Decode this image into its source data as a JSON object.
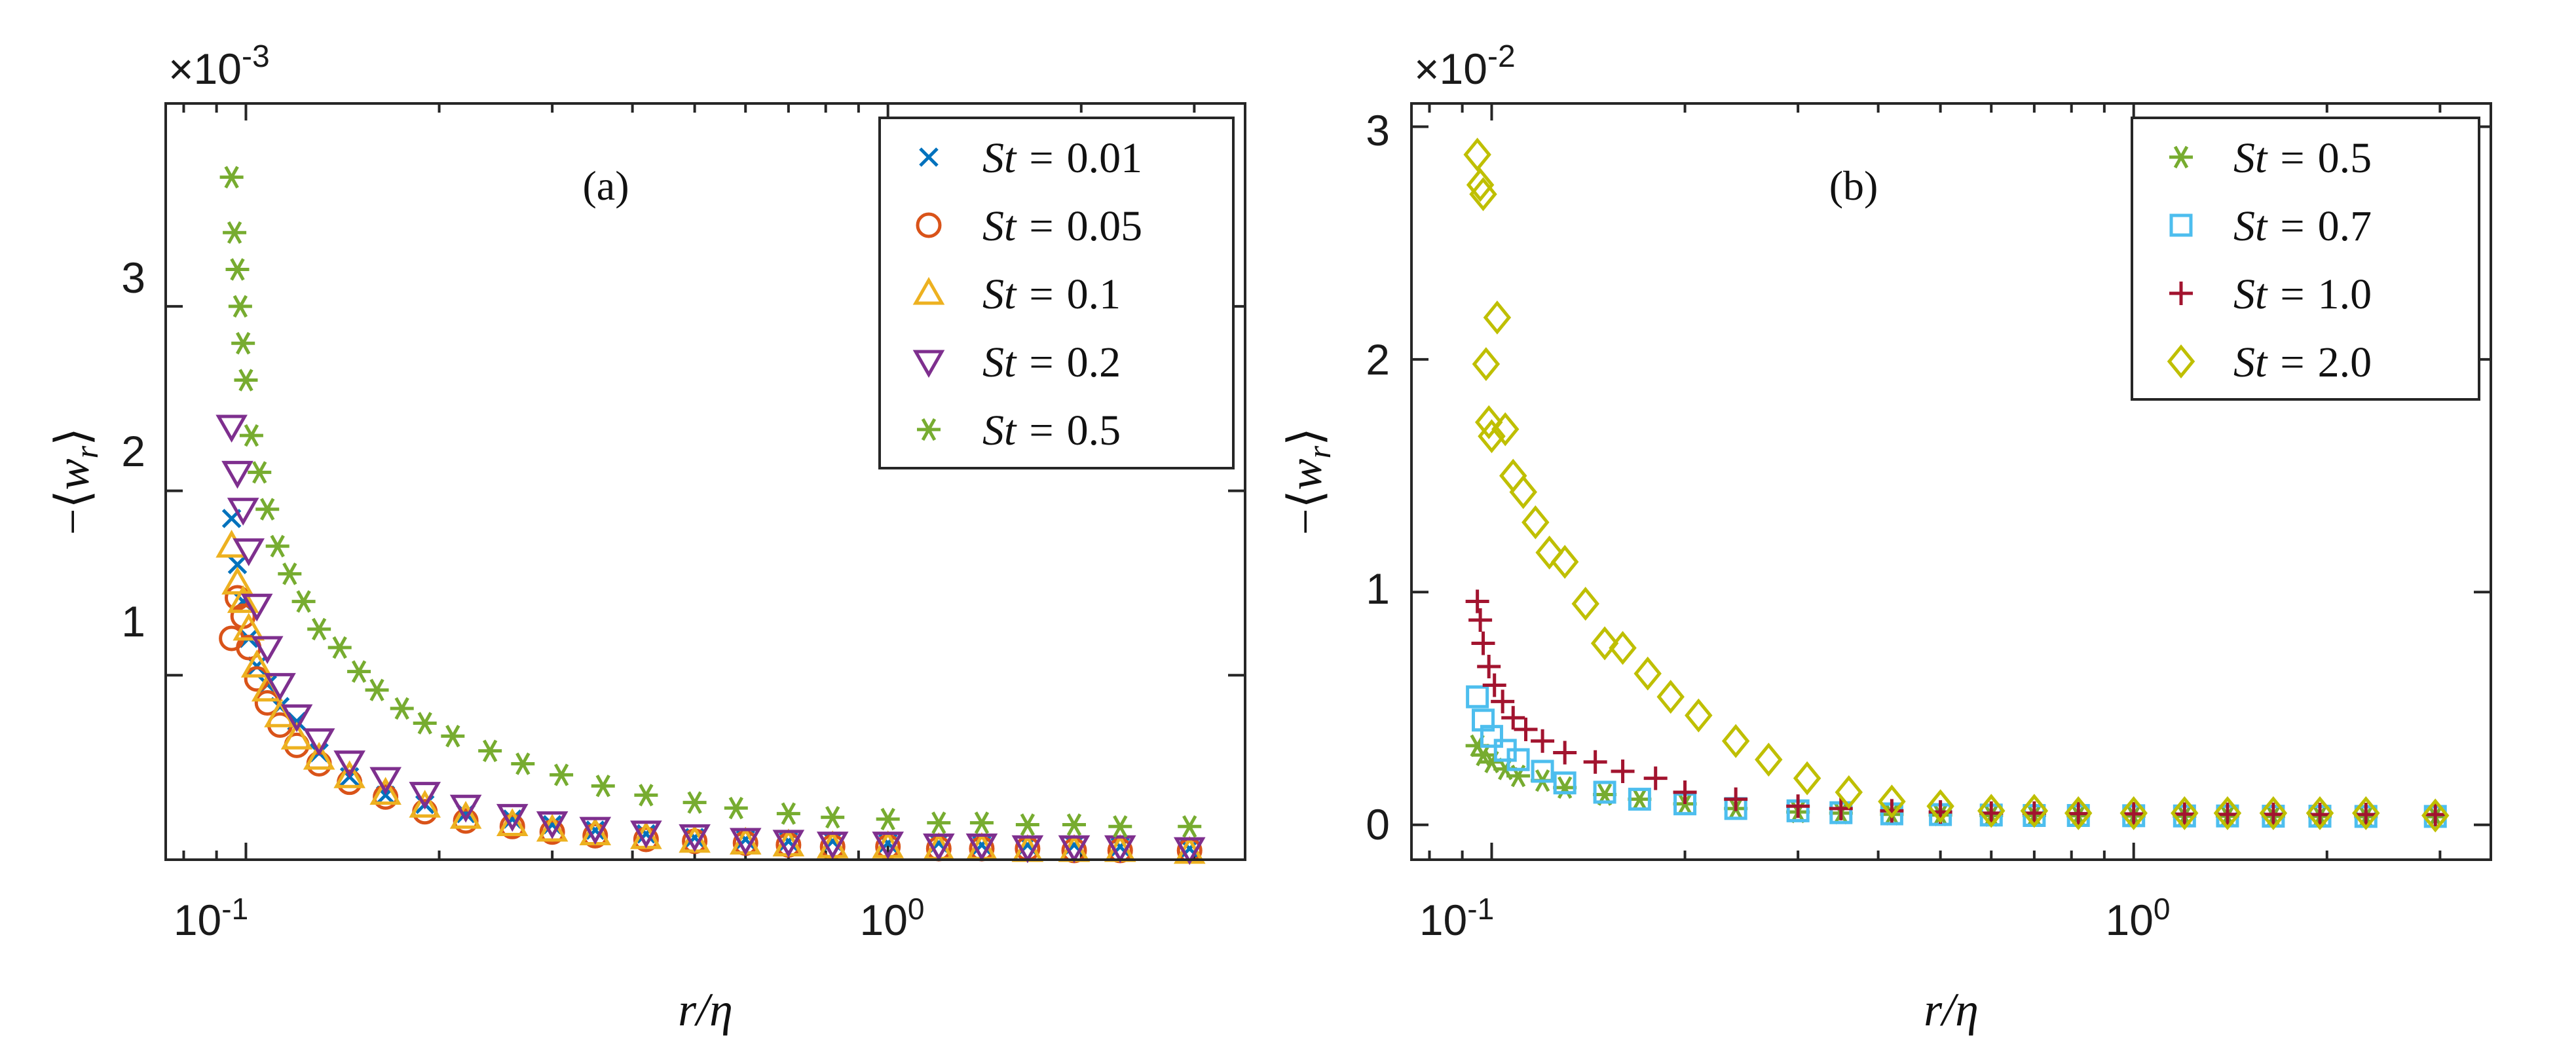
{
  "chart_data": [
    {
      "panel": "(a)",
      "type": "scatter",
      "xscale": "log",
      "xlim": [
        0.075,
        3.6
      ],
      "ylim": [
        0,
        0.0041
      ],
      "x_ticks": [
        {
          "value": 0.1,
          "base": "10",
          "exp": "-1"
        },
        {
          "value": 1,
          "base": "10",
          "exp": "0"
        }
      ],
      "y_ticks": [
        {
          "value": 0.001,
          "label": "1"
        },
        {
          "value": 0.002,
          "label": "2"
        },
        {
          "value": 0.003,
          "label": "3"
        }
      ],
      "exponent": {
        "prefix": "×10",
        "power": "-3"
      },
      "xlabel": "r/η",
      "ylabel": "−⟨w_r⟩",
      "ylabel_parts": {
        "minus": "−",
        "open": "⟨",
        "w": "w",
        "sub": "r",
        "close": "⟩"
      },
      "legend_position": "top-right",
      "series": [
        {
          "name": "St = 0.01",
          "name_parts": {
            "St": "St",
            "eq": "=",
            "value": "0.01"
          },
          "marker": "x",
          "color": "#0072BD",
          "x": [
            0.095,
            0.097,
            0.099,
            0.101,
            0.104,
            0.108,
            0.113,
            0.12,
            0.13,
            0.145,
            0.165,
            0.19,
            0.22,
            0.26,
            0.3,
            0.35,
            0.42,
            0.5,
            0.6,
            0.7,
            0.82,
            1.0,
            1.2,
            1.4,
            1.65,
            1.95,
            2.3,
            2.95
          ],
          "y": [
            0.00185,
            0.0016,
            0.0014,
            0.0012,
            0.00105,
            0.00095,
            0.00083,
            0.00075,
            0.00058,
            0.00045,
            0.00035,
            0.0003,
            0.00025,
            0.00022,
            0.00019,
            0.00016,
            0.00014,
            0.00012,
            0.00011,
            0.0001,
            0.0001,
            9e-05,
            9e-05,
            8e-05,
            8e-05,
            8e-05,
            7e-05,
            6e-05
          ]
        },
        {
          "name": "St = 0.05",
          "name_parts": {
            "St": "St",
            "eq": "=",
            "value": "0.05"
          },
          "marker": "circle",
          "color": "#D95319",
          "x": [
            0.095,
            0.097,
            0.099,
            0.101,
            0.104,
            0.108,
            0.113,
            0.12,
            0.13,
            0.145,
            0.165,
            0.19,
            0.22,
            0.26,
            0.3,
            0.35,
            0.42,
            0.5,
            0.6,
            0.7,
            0.82,
            1.0,
            1.2,
            1.4,
            1.65,
            1.95,
            2.3,
            2.95
          ],
          "y": [
            0.0012,
            0.00142,
            0.00132,
            0.00115,
            0.00098,
            0.00085,
            0.00073,
            0.00062,
            0.00052,
            0.00042,
            0.00034,
            0.00026,
            0.00021,
            0.00018,
            0.00015,
            0.00013,
            0.00011,
            0.0001,
            9e-05,
            8e-05,
            7e-05,
            7e-05,
            6e-05,
            6e-05,
            6e-05,
            5e-05,
            5e-05,
            5e-05
          ]
        },
        {
          "name": "St = 0.1",
          "name_parts": {
            "St": "St",
            "eq": "=",
            "value": "0.1"
          },
          "marker": "triangle-up",
          "color": "#EDB120",
          "x": [
            0.095,
            0.097,
            0.099,
            0.101,
            0.104,
            0.108,
            0.113,
            0.12,
            0.13,
            0.145,
            0.165,
            0.19,
            0.22,
            0.26,
            0.3,
            0.35,
            0.42,
            0.5,
            0.6,
            0.7,
            0.82,
            1.0,
            1.2,
            1.4,
            1.65,
            1.95,
            2.3,
            2.95
          ],
          "y": [
            0.0017,
            0.0015,
            0.0014,
            0.00125,
            0.00105,
            0.00092,
            0.00078,
            0.00066,
            0.00055,
            0.00045,
            0.00036,
            0.00029,
            0.00023,
            0.00019,
            0.00016,
            0.00014,
            0.00012,
            0.0001,
            9e-05,
            8e-05,
            7e-05,
            7e-05,
            6e-05,
            6e-05,
            5e-05,
            5e-05,
            5e-05,
            4e-05
          ]
        },
        {
          "name": "St = 0.2",
          "name_parts": {
            "St": "St",
            "eq": "=",
            "value": "0.2"
          },
          "marker": "triangle-down",
          "color": "#7E2F8E",
          "x": [
            0.095,
            0.097,
            0.099,
            0.101,
            0.104,
            0.108,
            0.113,
            0.12,
            0.13,
            0.145,
            0.165,
            0.19,
            0.22,
            0.26,
            0.3,
            0.35,
            0.42,
            0.5,
            0.6,
            0.7,
            0.82,
            1.0,
            1.2,
            1.4,
            1.65,
            1.95,
            2.3,
            2.95
          ],
          "y": [
            0.00235,
            0.0021,
            0.0019,
            0.00168,
            0.00138,
            0.00115,
            0.00095,
            0.00078,
            0.00065,
            0.00053,
            0.00044,
            0.00036,
            0.00029,
            0.00024,
            0.0002,
            0.00017,
            0.00015,
            0.00013,
            0.00011,
            0.0001,
            9e-05,
            9e-05,
            8e-05,
            8e-05,
            7e-05,
            7e-05,
            7e-05,
            6e-05
          ]
        },
        {
          "name": "St = 0.5",
          "name_parts": {
            "St": "St",
            "eq": "=",
            "value": "0.5"
          },
          "marker": "asterisk",
          "color": "#77AC30",
          "x": [
            0.095,
            0.096,
            0.097,
            0.098,
            0.099,
            0.1,
            0.102,
            0.105,
            0.108,
            0.112,
            0.117,
            0.123,
            0.13,
            0.14,
            0.15,
            0.16,
            0.175,
            0.19,
            0.21,
            0.24,
            0.27,
            0.31,
            0.36,
            0.42,
            0.5,
            0.58,
            0.7,
            0.82,
            1.0,
            1.2,
            1.4,
            1.65,
            1.95,
            2.3,
            2.95
          ],
          "y": [
            0.0037,
            0.0034,
            0.0032,
            0.003,
            0.0028,
            0.0026,
            0.0023,
            0.0021,
            0.0019,
            0.0017,
            0.00155,
            0.0014,
            0.00125,
            0.00115,
            0.00102,
            0.00092,
            0.00082,
            0.00074,
            0.00067,
            0.00059,
            0.00052,
            0.00046,
            0.0004,
            0.00035,
            0.00031,
            0.00028,
            0.00025,
            0.00023,
            0.00022,
            0.0002,
            0.0002,
            0.00019,
            0.00019,
            0.00018,
            0.00018
          ]
        }
      ]
    },
    {
      "panel": "(b)",
      "type": "scatter",
      "xscale": "log",
      "xlim": [
        0.075,
        3.6
      ],
      "ylim": [
        -0.0015,
        0.031
      ],
      "x_ticks": [
        {
          "value": 0.1,
          "base": "10",
          "exp": "-1"
        },
        {
          "value": 1,
          "base": "10",
          "exp": "0"
        }
      ],
      "y_ticks": [
        {
          "value": 0,
          "label": "0"
        },
        {
          "value": 0.01,
          "label": "1"
        },
        {
          "value": 0.02,
          "label": "2"
        },
        {
          "value": 0.03,
          "label": "3"
        }
      ],
      "exponent": {
        "prefix": "×10",
        "power": "-2"
      },
      "xlabel": "r/η",
      "ylabel": "−⟨w_r⟩",
      "ylabel_parts": {
        "minus": "−",
        "open": "⟨",
        "w": "w",
        "sub": "r",
        "close": "⟩"
      },
      "legend_position": "top-right",
      "series": [
        {
          "name": "St = 0.5",
          "name_parts": {
            "St": "St",
            "eq": "=",
            "value": "0.5"
          },
          "marker": "asterisk",
          "color": "#77AC30",
          "x": [
            0.095,
            0.097,
            0.1,
            0.105,
            0.11,
            0.12,
            0.13,
            0.15,
            0.17,
            0.2,
            0.24,
            0.3,
            0.35,
            0.42,
            0.5,
            0.6,
            0.7,
            0.82,
            1.0,
            1.2,
            1.4,
            1.65,
            1.95,
            2.3,
            2.95
          ],
          "y": [
            0.0034,
            0.003,
            0.0027,
            0.0024,
            0.0021,
            0.0019,
            0.0016,
            0.0013,
            0.0011,
            0.0009,
            0.0007,
            0.00055,
            0.0005,
            0.00045,
            0.00042,
            0.0004,
            0.0004,
            0.00039,
            0.00038,
            0.00037,
            0.00037,
            0.00036,
            0.00036,
            0.00035,
            0.00035
          ]
        },
        {
          "name": "St = 0.7",
          "name_parts": {
            "St": "St",
            "eq": "=",
            "value": "0.7"
          },
          "marker": "square",
          "color": "#4DBEEE",
          "x": [
            0.095,
            0.097,
            0.1,
            0.105,
            0.11,
            0.12,
            0.13,
            0.15,
            0.17,
            0.2,
            0.24,
            0.3,
            0.35,
            0.42,
            0.5,
            0.6,
            0.7,
            0.82,
            1.0,
            1.2,
            1.4,
            1.65,
            1.95,
            2.3,
            2.95
          ],
          "y": [
            0.0055,
            0.0045,
            0.0038,
            0.0032,
            0.0028,
            0.0023,
            0.0018,
            0.0014,
            0.0011,
            0.0009,
            0.0007,
            0.0006,
            0.00052,
            0.00047,
            0.00044,
            0.00042,
            0.0004,
            0.0004,
            0.00039,
            0.00038,
            0.00038,
            0.00037,
            0.00037,
            0.00036,
            0.00036
          ]
        },
        {
          "name": "St = 1.0",
          "name_parts": {
            "St": "St",
            "eq": "=",
            "value": "1.0"
          },
          "marker": "plus",
          "color": "#A2142F",
          "x": [
            0.095,
            0.096,
            0.097,
            0.099,
            0.101,
            0.104,
            0.108,
            0.113,
            0.12,
            0.13,
            0.145,
            0.16,
            0.18,
            0.2,
            0.24,
            0.3,
            0.35,
            0.42,
            0.5,
            0.6,
            0.7,
            0.82,
            1.0,
            1.2,
            1.4,
            1.65,
            1.95,
            2.3,
            2.95
          ],
          "y": [
            0.0096,
            0.0088,
            0.0078,
            0.0068,
            0.006,
            0.0053,
            0.0046,
            0.0041,
            0.0036,
            0.0031,
            0.0027,
            0.0023,
            0.002,
            0.0014,
            0.0011,
            0.0008,
            0.0007,
            0.0006,
            0.00055,
            0.0005,
            0.0005,
            0.00048,
            0.00047,
            0.00046,
            0.00045,
            0.00045,
            0.00044,
            0.00044,
            0.00044
          ]
        },
        {
          "name": "St = 2.0",
          "name_parts": {
            "St": "St",
            "eq": "=",
            "value": "2.0"
          },
          "marker": "diamond",
          "color": "#BFBF00",
          "x": [
            0.095,
            0.096,
            0.097,
            0.098,
            0.099,
            0.1,
            0.102,
            0.105,
            0.108,
            0.112,
            0.117,
            0.123,
            0.13,
            0.14,
            0.15,
            0.16,
            0.175,
            0.19,
            0.21,
            0.24,
            0.27,
            0.31,
            0.36,
            0.42,
            0.5,
            0.6,
            0.7,
            0.82,
            1.0,
            1.2,
            1.4,
            1.65,
            1.95,
            2.3,
            2.95
          ],
          "y": [
            0.0288,
            0.0275,
            0.0271,
            0.0198,
            0.0173,
            0.0167,
            0.0218,
            0.017,
            0.015,
            0.0143,
            0.013,
            0.0117,
            0.0113,
            0.0095,
            0.0078,
            0.0076,
            0.0065,
            0.0055,
            0.0047,
            0.0036,
            0.0028,
            0.002,
            0.0014,
            0.001,
            0.0008,
            0.0006,
            0.0006,
            0.0005,
            0.0005,
            0.0005,
            0.0005,
            0.0005,
            0.0005,
            0.0005,
            0.0004
          ]
        }
      ]
    }
  ]
}
